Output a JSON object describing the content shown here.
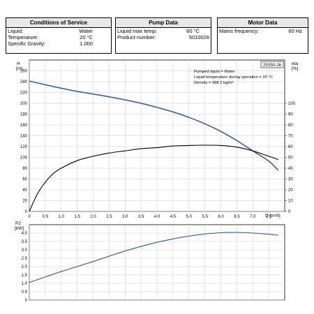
{
  "conditions": {
    "title": "Conditions of Service",
    "rows": [
      {
        "label": "Liquid:",
        "value": "Water"
      },
      {
        "label": "Temperature:",
        "value": "20 °C"
      },
      {
        "label": "Specific Gravity:",
        "value": "1.000"
      }
    ]
  },
  "pump": {
    "title": "Pump Data",
    "rows": [
      {
        "label": "Liquid max temp:",
        "value": "60 °C"
      },
      {
        "label": "Product number:",
        "value": "5010026"
      }
    ]
  },
  "motor": {
    "title": "Motor Data",
    "rows": [
      {
        "label": "Mains frequency:",
        "value": "60 Hz"
      }
    ]
  },
  "chart_data": [
    {
      "type": "line",
      "model_label": "25S50-26",
      "annotation": [
        "Pumped liquid = Water",
        "Liquid temperature during operation = 20 °C",
        "Density = 998.2 kg/m³"
      ],
      "ylabel": "H [m]",
      "y2label": "eta [%]",
      "xlabel": "Q [m³/h]",
      "xlim": [
        0,
        8
      ],
      "ylim": [
        0,
        280
      ],
      "y2lim": [
        0,
        140
      ],
      "xticks": [
        0,
        0.5,
        1.0,
        1.5,
        2.0,
        2.5,
        3.0,
        3.5,
        4.0,
        4.5,
        5.0,
        5.5,
        6.0,
        6.5,
        7.0,
        7.5
      ],
      "xtick_labels": [
        "0",
        "0.5",
        "1.0",
        "1.5",
        "2.0",
        "2.5",
        "3.0",
        "3.5",
        "4.0",
        "4.5",
        "5.0",
        "5.5",
        "6.0",
        "6.5",
        "7.0",
        "7.5"
      ],
      "yticks": [
        0,
        20,
        40,
        60,
        80,
        100,
        120,
        140,
        160,
        180,
        200,
        220,
        240,
        260
      ],
      "y2ticks": [
        0,
        10,
        20,
        30,
        40,
        50,
        60,
        70,
        80,
        90,
        100
      ],
      "grid": true,
      "series": [
        {
          "axis": "left",
          "color": "#2a5aa0",
          "x": [
            0,
            0.75,
            1.5,
            2.5,
            3.5,
            4.5,
            5.0,
            5.5,
            6.0,
            6.5,
            7.0,
            7.5,
            7.8
          ],
          "y": [
            241,
            231,
            222,
            212,
            200,
            184,
            174,
            162,
            148,
            131,
            112,
            93,
            76
          ]
        },
        {
          "axis": "right",
          "color": "#000000",
          "x": [
            0,
            0.25,
            0.5,
            0.75,
            1.0,
            1.5,
            2.0,
            2.5,
            3.0,
            3.5,
            4.0,
            4.5,
            5.0,
            5.5,
            6.0,
            6.5,
            7.0,
            7.5,
            7.8
          ],
          "y": [
            0,
            16,
            27,
            35,
            40,
            47,
            51,
            54,
            56,
            58,
            59,
            60.5,
            61,
            61.3,
            61,
            59.5,
            56,
            51,
            48
          ]
        }
      ]
    },
    {
      "type": "line",
      "ylabel": "P2 [kW]",
      "xlim": [
        0,
        8
      ],
      "ylim": [
        0,
        4.5
      ],
      "yticks": [
        0,
        0.5,
        1.0,
        1.5,
        2.0,
        2.5,
        3.0,
        3.5,
        4.0
      ],
      "ytick_labels": [
        "0",
        "0.5",
        "1.0",
        "1.5",
        "2.0",
        "2.5",
        "3.0",
        "3.5",
        "4.0"
      ],
      "grid": true,
      "series": [
        {
          "color": "#2a5aa0",
          "x": [
            0,
            0.5,
            1.0,
            1.5,
            2.0,
            2.5,
            3.0,
            3.5,
            4.0,
            4.5,
            5.0,
            5.5,
            6.0,
            6.5,
            7.0,
            7.5,
            7.8
          ],
          "y": [
            1.05,
            1.38,
            1.7,
            2.0,
            2.3,
            2.62,
            2.93,
            3.2,
            3.45,
            3.65,
            3.82,
            3.94,
            4.02,
            4.04,
            4.0,
            3.93,
            3.87
          ]
        }
      ]
    }
  ]
}
